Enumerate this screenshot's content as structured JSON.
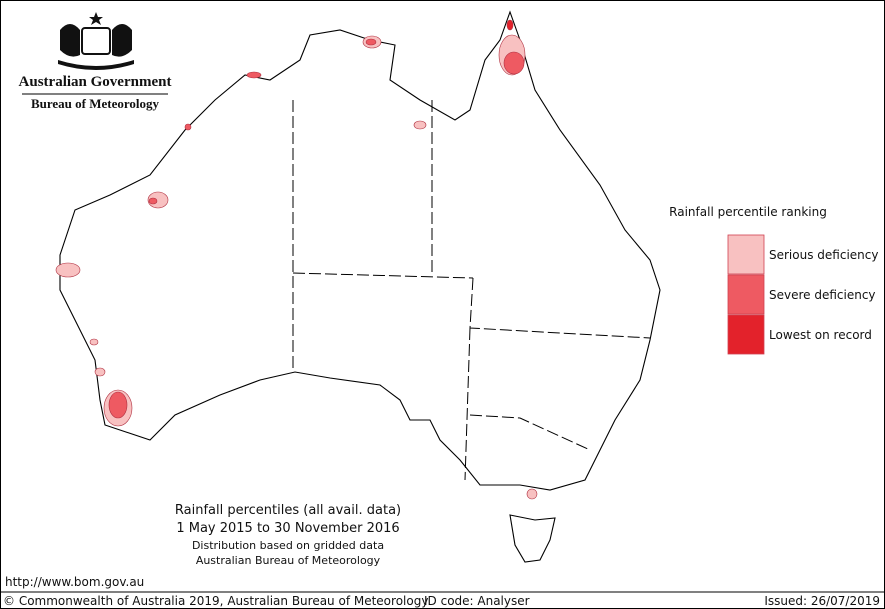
{
  "logo": {
    "line1": "Australian Government",
    "line2": "Bureau of Meteorology"
  },
  "legend": {
    "title": "Rainfall percentile ranking",
    "items": [
      {
        "label": "Serious deficiency",
        "color": "#f8c1c1"
      },
      {
        "label": "Severe deficiency",
        "color": "#ee5a62"
      },
      {
        "label": "Lowest on record",
        "color": "#e3222b"
      }
    ]
  },
  "caption": {
    "lines": [
      "Rainfall percentiles (all avail. data)",
      "1 May 2015 to 30 November 2016",
      "Distribution based on gridded data",
      "Australian Bureau of Meteorology"
    ]
  },
  "url": "http://www.bom.gov.au",
  "footer": {
    "copyright": "© Commonwealth of Australia 2019, Australian Bureau of Meteorology",
    "id_code": "ID code: Analyser",
    "issued": "Issued: 26/07/2019"
  }
}
